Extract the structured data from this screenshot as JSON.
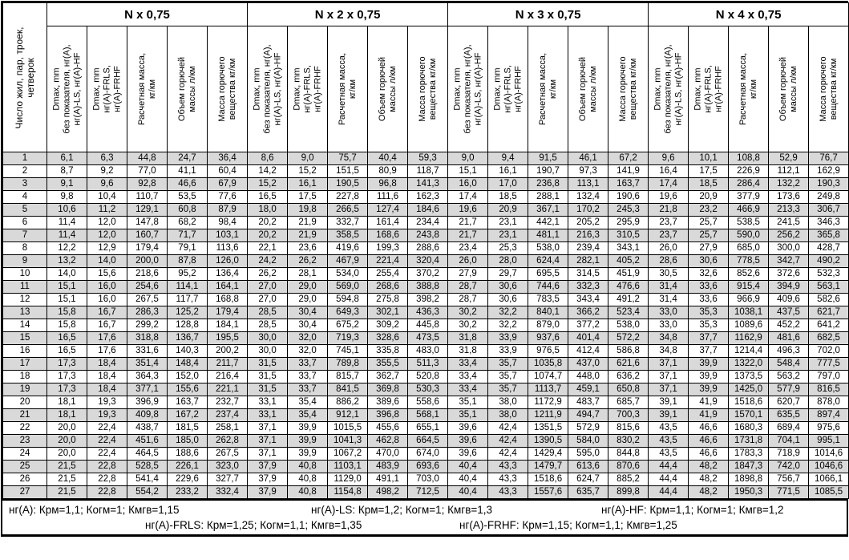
{
  "table": {
    "corner_header_lines": [
      "Число жил, пар, троек,",
      "четверок"
    ],
    "groups": [
      {
        "title": "N x 0,75"
      },
      {
        "title": "N x 2 x 0,75"
      },
      {
        "title": "N x 3 x 0,75"
      },
      {
        "title": "N x 4 x 0,75"
      }
    ],
    "sub_header_lines": [
      [
        "Dmax, mm",
        "без показателя, нг(A),",
        "нг(A)-LS, нг(A)-HF"
      ],
      [
        "Dmax, mm",
        "нг(A)-FRLS,",
        "нг(A)-FRHF"
      ],
      [
        "Расчетная масса,",
        "кг/км"
      ],
      [
        "Объем горючей",
        "массы л/км"
      ],
      [
        "Масса горючего",
        "вещества кг/км"
      ]
    ],
    "rows": [
      [
        "1",
        "6,1",
        "6,3",
        "44,8",
        "24,7",
        "36,4",
        "8,6",
        "9,0",
        "75,7",
        "40,4",
        "59,3",
        "9,0",
        "9,4",
        "91,5",
        "46,1",
        "67,2",
        "9,6",
        "10,1",
        "108,8",
        "52,9",
        "76,7"
      ],
      [
        "2",
        "8,7",
        "9,2",
        "77,0",
        "41,1",
        "60,4",
        "14,2",
        "15,2",
        "151,5",
        "80,9",
        "118,7",
        "15,1",
        "16,1",
        "190,7",
        "97,3",
        "141,9",
        "16,4",
        "17,5",
        "226,9",
        "112,1",
        "162,9"
      ],
      [
        "3",
        "9,1",
        "9,6",
        "92,8",
        "46,6",
        "67,9",
        "15,2",
        "16,1",
        "190,5",
        "96,8",
        "141,3",
        "16,0",
        "17,0",
        "236,8",
        "113,1",
        "163,7",
        "17,4",
        "18,5",
        "286,4",
        "132,2",
        "190,3"
      ],
      [
        "4",
        "9,8",
        "10,4",
        "110,7",
        "53,5",
        "77,6",
        "16,5",
        "17,5",
        "227,8",
        "111,6",
        "162,3",
        "17,4",
        "18,5",
        "288,1",
        "132,4",
        "190,6",
        "19,6",
        "20,9",
        "377,9",
        "173,6",
        "249,8"
      ],
      [
        "5",
        "10,6",
        "11,2",
        "129,1",
        "60,8",
        "87,9",
        "18,0",
        "19,8",
        "266,5",
        "127,4",
        "184,6",
        "19,6",
        "20,9",
        "367,1",
        "170,2",
        "245,3",
        "21,8",
        "23,2",
        "466,9",
        "213,3",
        "306,7"
      ],
      [
        "6",
        "11,4",
        "12,0",
        "147,8",
        "68,2",
        "98,4",
        "20,2",
        "21,9",
        "332,7",
        "161,4",
        "234,4",
        "21,7",
        "23,1",
        "442,1",
        "205,2",
        "295,9",
        "23,7",
        "25,7",
        "538,5",
        "241,5",
        "346,3"
      ],
      [
        "7",
        "11,4",
        "12,0",
        "160,7",
        "71,7",
        "103,1",
        "20,2",
        "21,9",
        "358,5",
        "168,6",
        "243,8",
        "21,7",
        "23,1",
        "481,1",
        "216,3",
        "310,5",
        "23,7",
        "25,7",
        "590,0",
        "256,2",
        "365,8"
      ],
      [
        "8",
        "12,2",
        "12,9",
        "179,4",
        "79,1",
        "113,6",
        "22,1",
        "23,6",
        "419,6",
        "199,3",
        "288,6",
        "23,4",
        "25,3",
        "538,0",
        "239,4",
        "343,1",
        "26,0",
        "27,9",
        "685,0",
        "300,0",
        "428,7"
      ],
      [
        "9",
        "13,2",
        "14,0",
        "200,0",
        "87,8",
        "126,0",
        "24,2",
        "26,2",
        "467,9",
        "221,4",
        "320,4",
        "26,0",
        "28,0",
        "624,4",
        "282,1",
        "405,2",
        "28,6",
        "30,6",
        "778,5",
        "342,7",
        "490,2"
      ],
      [
        "10",
        "14,0",
        "15,6",
        "218,6",
        "95,2",
        "136,4",
        "26,2",
        "28,1",
        "534,0",
        "255,4",
        "370,2",
        "27,9",
        "29,7",
        "695,5",
        "314,5",
        "451,9",
        "30,5",
        "32,6",
        "852,6",
        "372,6",
        "532,3"
      ],
      [
        "11",
        "15,1",
        "16,0",
        "254,6",
        "114,1",
        "164,1",
        "27,0",
        "29,0",
        "569,0",
        "268,6",
        "388,8",
        "28,7",
        "30,6",
        "744,6",
        "332,3",
        "476,6",
        "31,4",
        "33,6",
        "915,4",
        "394,9",
        "563,1"
      ],
      [
        "12",
        "15,1",
        "16,0",
        "267,5",
        "117,7",
        "168,8",
        "27,0",
        "29,0",
        "594,8",
        "275,8",
        "398,2",
        "28,7",
        "30,6",
        "783,5",
        "343,4",
        "491,2",
        "31,4",
        "33,6",
        "966,9",
        "409,6",
        "582,6"
      ],
      [
        "13",
        "15,8",
        "16,7",
        "286,3",
        "125,2",
        "179,4",
        "28,5",
        "30,4",
        "649,3",
        "302,1",
        "436,3",
        "30,2",
        "32,2",
        "840,1",
        "366,2",
        "523,4",
        "33,0",
        "35,3",
        "1038,1",
        "437,5",
        "621,7"
      ],
      [
        "14",
        "15,8",
        "16,7",
        "299,2",
        "128,8",
        "184,1",
        "28,5",
        "30,4",
        "675,2",
        "309,2",
        "445,8",
        "30,2",
        "32,2",
        "879,0",
        "377,2",
        "538,0",
        "33,0",
        "35,3",
        "1089,6",
        "452,2",
        "641,2"
      ],
      [
        "15",
        "16,5",
        "17,6",
        "318,8",
        "136,7",
        "195,5",
        "30,0",
        "32,0",
        "719,3",
        "328,6",
        "473,5",
        "31,8",
        "33,9",
        "937,6",
        "401,4",
        "572,2",
        "34,8",
        "37,7",
        "1162,9",
        "481,6",
        "682,5"
      ],
      [
        "16",
        "16,5",
        "17,6",
        "331,6",
        "140,3",
        "200,2",
        "30,0",
        "32,0",
        "745,1",
        "335,8",
        "483,0",
        "31,8",
        "33,9",
        "976,5",
        "412,4",
        "586,8",
        "34,8",
        "37,7",
        "1214,4",
        "496,3",
        "702,0"
      ],
      [
        "17",
        "17,3",
        "18,4",
        "351,4",
        "148,4",
        "211,7",
        "31,5",
        "33,7",
        "789,8",
        "355,5",
        "511,3",
        "33,4",
        "35,7",
        "1035,8",
        "437,0",
        "621,6",
        "37,1",
        "39,9",
        "1322,0",
        "548,4",
        "777,5"
      ],
      [
        "18",
        "17,3",
        "18,4",
        "364,3",
        "152,0",
        "216,4",
        "31,5",
        "33,7",
        "815,7",
        "362,7",
        "520,8",
        "33,4",
        "35,7",
        "1074,7",
        "448,0",
        "636,2",
        "37,1",
        "39,9",
        "1373,5",
        "563,2",
        "797,0"
      ],
      [
        "19",
        "17,3",
        "18,4",
        "377,1",
        "155,6",
        "221,1",
        "31,5",
        "33,7",
        "841,5",
        "369,8",
        "530,3",
        "33,4",
        "35,7",
        "1113,7",
        "459,1",
        "650,8",
        "37,1",
        "39,9",
        "1425,0",
        "577,9",
        "816,5"
      ],
      [
        "20",
        "18,1",
        "19,3",
        "396,9",
        "163,7",
        "232,7",
        "33,1",
        "35,4",
        "886,2",
        "389,6",
        "558,6",
        "35,1",
        "38,0",
        "1172,9",
        "483,7",
        "685,7",
        "39,1",
        "41,9",
        "1518,6",
        "620,7",
        "878,0"
      ],
      [
        "21",
        "18,1",
        "19,3",
        "409,8",
        "167,2",
        "237,4",
        "33,1",
        "35,4",
        "912,1",
        "396,8",
        "568,1",
        "35,1",
        "38,0",
        "1211,9",
        "494,7",
        "700,3",
        "39,1",
        "41,9",
        "1570,1",
        "635,5",
        "897,4"
      ],
      [
        "22",
        "20,0",
        "22,4",
        "438,7",
        "181,5",
        "258,1",
        "37,1",
        "39,9",
        "1015,5",
        "455,6",
        "655,1",
        "39,6",
        "42,4",
        "1351,5",
        "572,9",
        "815,6",
        "43,5",
        "46,6",
        "1680,3",
        "689,4",
        "975,6"
      ],
      [
        "23",
        "20,0",
        "22,4",
        "451,6",
        "185,0",
        "262,8",
        "37,1",
        "39,9",
        "1041,3",
        "462,8",
        "664,5",
        "39,6",
        "42,4",
        "1390,5",
        "584,0",
        "830,2",
        "43,5",
        "46,6",
        "1731,8",
        "704,1",
        "995,1"
      ],
      [
        "24",
        "20,0",
        "22,4",
        "464,5",
        "188,6",
        "267,5",
        "37,1",
        "39,9",
        "1067,2",
        "470,0",
        "674,0",
        "39,6",
        "42,4",
        "1429,4",
        "595,0",
        "844,8",
        "43,5",
        "46,6",
        "1783,3",
        "718,9",
        "1014,6"
      ],
      [
        "25",
        "21,5",
        "22,8",
        "528,5",
        "226,1",
        "323,0",
        "37,9",
        "40,8",
        "1103,1",
        "483,9",
        "693,6",
        "40,4",
        "43,3",
        "1479,7",
        "613,6",
        "870,6",
        "44,4",
        "48,2",
        "1847,3",
        "742,0",
        "1046,6"
      ],
      [
        "26",
        "21,5",
        "22,8",
        "541,4",
        "229,6",
        "327,7",
        "37,9",
        "40,8",
        "1129,0",
        "491,1",
        "703,0",
        "40,4",
        "43,3",
        "1518,6",
        "624,7",
        "885,2",
        "44,4",
        "48,2",
        "1898,8",
        "756,7",
        "1066,1"
      ],
      [
        "27",
        "21,5",
        "22,8",
        "554,2",
        "233,2",
        "332,4",
        "37,9",
        "40,8",
        "1154,8",
        "498,2",
        "712,5",
        "40,4",
        "43,3",
        "1557,6",
        "635,7",
        "899,8",
        "44,4",
        "48,2",
        "1950,3",
        "771,5",
        "1085,5"
      ]
    ]
  },
  "footnotes": {
    "line1": [
      "нг(A): Крм=1,1;  Когм=1;  Кмгв=1,15",
      "нг(A)-LS: Крм=1,2;  Когм=1;  Кмгв=1,3",
      "нг(A)-HF: Крм=1,1;  Когм=1;  Кмгв=1,2"
    ],
    "line2": [
      "нг(A)-FRLS: Крм=1,25;  Когм=1,1;  Кмгв=1,35",
      "нг(A)-FRHF: Крм=1,15;  Когм=1,1;  Кмгв=1,25"
    ]
  },
  "colors": {
    "stripe": "#d9d9d9",
    "border": "#000000"
  }
}
